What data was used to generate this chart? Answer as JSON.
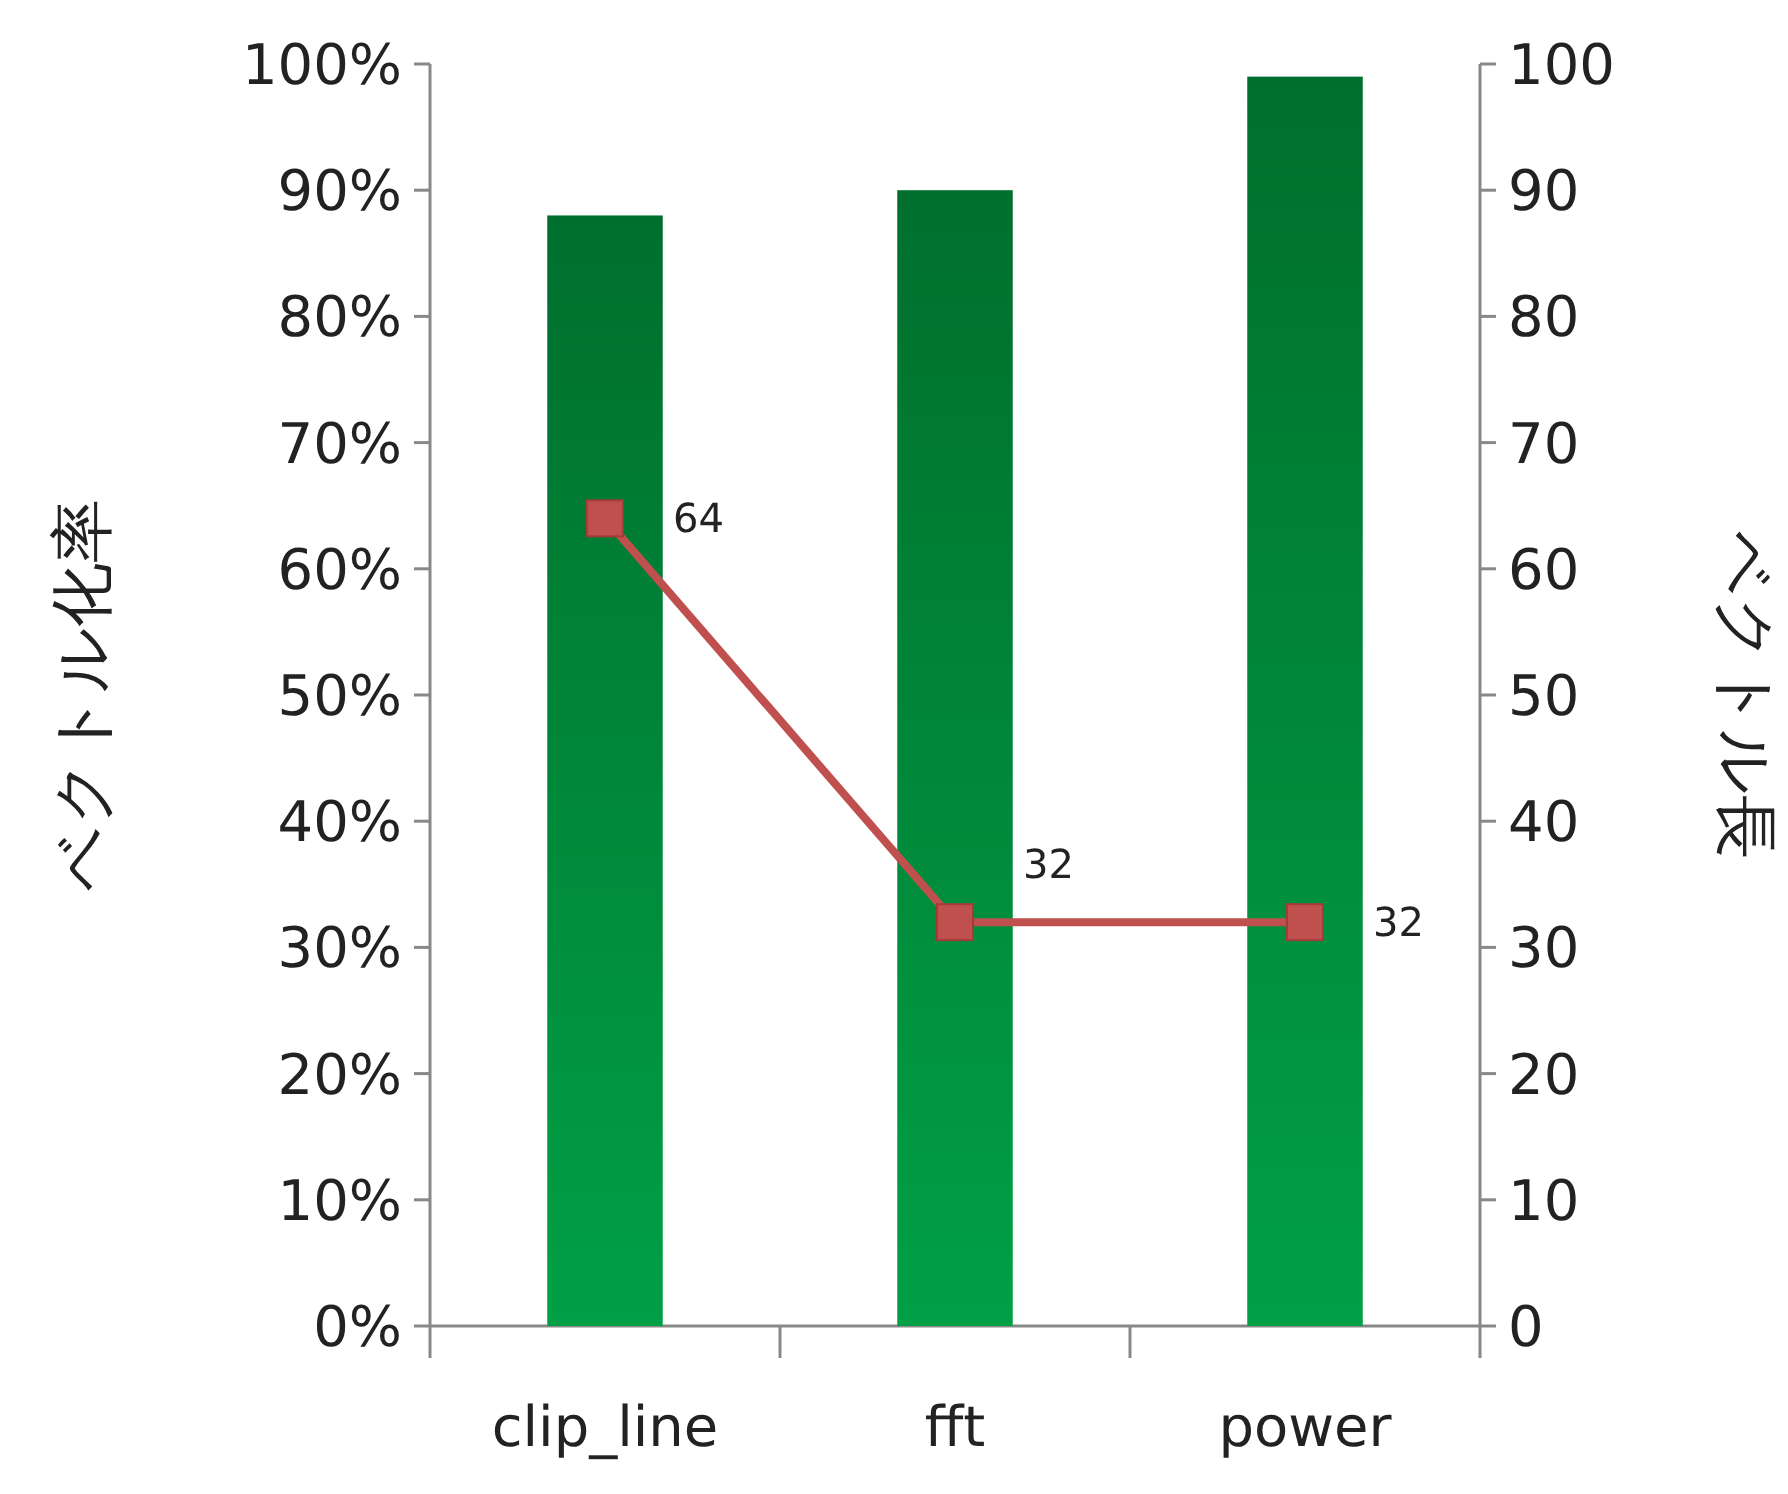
{
  "chart_data": {
    "type": "bar",
    "categories": [
      "clip_line",
      "fft",
      "power"
    ],
    "ylabel": "ベクトル化率",
    "y2label": "ベクトル長",
    "ylim": [
      0,
      100
    ],
    "yticks": [
      {
        "value": 0,
        "label": "0%"
      },
      {
        "value": 10,
        "label": "10%"
      },
      {
        "value": 20,
        "label": "20%"
      },
      {
        "value": 30,
        "label": "30%"
      },
      {
        "value": 40,
        "label": "40%"
      },
      {
        "value": 50,
        "label": "50%"
      },
      {
        "value": 60,
        "label": "60%"
      },
      {
        "value": 70,
        "label": "70%"
      },
      {
        "value": 80,
        "label": "80%"
      },
      {
        "value": 90,
        "label": "90%"
      },
      {
        "value": 100,
        "label": "100%"
      }
    ],
    "y2lim": [
      0,
      100
    ],
    "y2ticks": [
      0,
      10,
      20,
      30,
      40,
      50,
      60,
      70,
      80,
      90,
      100
    ],
    "series": [
      {
        "color": "#00a046",
        "values": [
          88,
          90,
          99
        ]
      },
      {
        "type": "line",
        "axis": "y2",
        "color": "#c0504d",
        "marker": "square",
        "values": [
          64,
          32,
          32
        ],
        "value_labels": [
          "64",
          "32",
          "32"
        ]
      }
    ]
  }
}
